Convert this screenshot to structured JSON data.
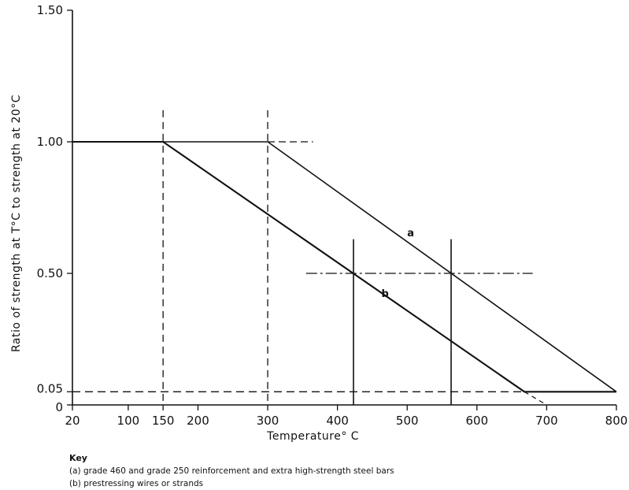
{
  "chart_data": {
    "type": "line",
    "xlabel": "Temperature° C",
    "ylabel": "Ratio of strength at T°C to strength at 20°C",
    "xlim": [
      20,
      800
    ],
    "ylim": [
      0,
      1.5
    ],
    "x_ticks": [
      20,
      100,
      150,
      200,
      300,
      400,
      500,
      600,
      700,
      800
    ],
    "x_tick_labels": [
      "20",
      "100",
      "150",
      "200",
      "300",
      "400",
      "500",
      "600",
      "700",
      "800"
    ],
    "y_ticks": [
      0,
      0.05,
      0.5,
      1.0,
      1.5
    ],
    "y_tick_labels": [
      "0",
      "0.05",
      "0.50",
      "1.00",
      "1.50"
    ],
    "grid": false,
    "series": [
      {
        "name": "a",
        "x": [
          20,
          300,
          800
        ],
        "y": [
          1.0,
          1.0,
          0.05
        ]
      },
      {
        "name": "b",
        "x": [
          20,
          150,
          668,
          800
        ],
        "y": [
          1.0,
          1.0,
          0.05,
          0.05
        ]
      }
    ],
    "reference_lines": {
      "vertical_dashed": [
        150,
        300
      ],
      "vertical_solid": [
        423,
        563
      ],
      "horizontal_dashed": [
        0.05
      ],
      "horizontal_dashdot": [
        0.5
      ]
    }
  },
  "key": {
    "title": "Key",
    "items": [
      "(a) grade 460 and grade 250 reinforcement and extra high-strength steel bars",
      "(b) prestressing wires or strands"
    ]
  }
}
